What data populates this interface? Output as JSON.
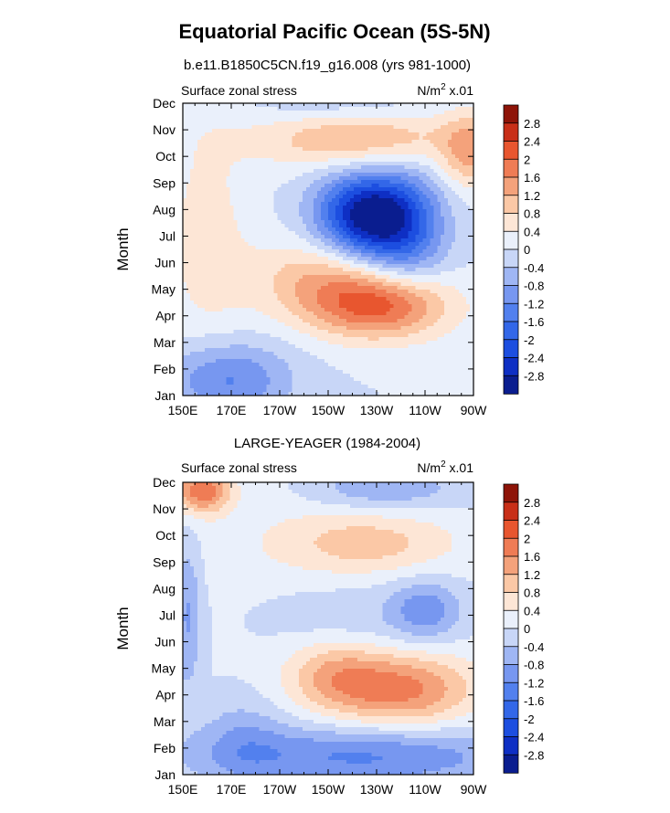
{
  "figure": {
    "title": "Equatorial Pacific Ocean (5S-5N)",
    "colorscale_name": "BlueWhiteOrangeRed",
    "colorbar_levels": [
      "-2.8",
      "-2.4",
      "-2",
      "-1.6",
      "-1.2",
      "-0.8",
      "-0.4",
      "0",
      "0.4",
      "0.8",
      "1.2",
      "1.6",
      "2",
      "2.4",
      "2.8"
    ],
    "colorbar_colors": [
      "#0a1d8f",
      "#0e2fc4",
      "#1c4ee0",
      "#3367e8",
      "#5280ee",
      "#7797f0",
      "#9fb6f4",
      "#c8d6f7",
      "#eaf0fb",
      "#fde6d6",
      "#fbc8a6",
      "#f4a27b",
      "#ef7c55",
      "#e8562f",
      "#c82f18",
      "#8e1408"
    ],
    "neutral_color": "#ffffff"
  },
  "chart_data": [
    {
      "type": "heatmap",
      "subtitle": "b.e11.B1850C5CN.f19_g16.008 (yrs 981-1000)",
      "left_label": "Surface zonal stress",
      "units_label": {
        "base": "N/m",
        "exp": "2",
        "suffix": " x.01"
      },
      "ylabel": "Month",
      "xlabel": "",
      "x_tick_labels": [
        "150E",
        "170E",
        "170W",
        "150W",
        "130W",
        "110W",
        "90W"
      ],
      "x_tick_lons": [
        150,
        170,
        190,
        210,
        230,
        250,
        270
      ],
      "xlim": [
        150,
        270
      ],
      "y_tick_labels": [
        "Jan",
        "Feb",
        "Mar",
        "Apr",
        "May",
        "Jun",
        "Jul",
        "Aug",
        "Sep",
        "Oct",
        "Nov",
        "Dec"
      ],
      "ylim": [
        1,
        12
      ],
      "value_scale": 0.01,
      "field_model": "simulated",
      "field_components": [
        {
          "kind": "gauss",
          "lon": 225,
          "month": 7.8,
          "sx": 14,
          "sy": 1.1,
          "amp": -2.9
        },
        {
          "kind": "gauss",
          "lon": 242,
          "month": 7.2,
          "sx": 12,
          "sy": 1.5,
          "amp": -1.5
        },
        {
          "kind": "gauss",
          "lon": 232,
          "month": 4.4,
          "sx": 20,
          "sy": 0.9,
          "amp": 2.1
        },
        {
          "kind": "gauss",
          "lon": 205,
          "month": 5.4,
          "sx": 20,
          "sy": 1.1,
          "amp": 1.0
        },
        {
          "kind": "gauss",
          "lon": 222,
          "month": 10.7,
          "sx": 30,
          "sy": 0.8,
          "amp": 1.3
        },
        {
          "kind": "gauss",
          "lon": 268,
          "month": 10.2,
          "sx": 8,
          "sy": 1.0,
          "amp": 1.2
        },
        {
          "kind": "gauss",
          "lon": 168,
          "month": 1.6,
          "sx": 18,
          "sy": 1.0,
          "amp": -1.3
        },
        {
          "kind": "gauss",
          "lon": 160,
          "month": 7.0,
          "sx": 12,
          "sy": 3.0,
          "amp": 0.6
        },
        {
          "kind": "gauss",
          "lon": 215,
          "month": 11.9,
          "sx": 25,
          "sy": 0.6,
          "amp": -0.5
        }
      ]
    },
    {
      "type": "heatmap",
      "subtitle": "LARGE-YEAGER (1984-2004)",
      "left_label": "Surface zonal stress",
      "units_label": {
        "base": "N/m",
        "exp": "2",
        "suffix": " x.01"
      },
      "ylabel": "Month",
      "xlabel": "",
      "x_tick_labels": [
        "150E",
        "170E",
        "170W",
        "150W",
        "130W",
        "110W",
        "90W"
      ],
      "x_tick_lons": [
        150,
        170,
        190,
        210,
        230,
        250,
        270
      ],
      "xlim": [
        150,
        270
      ],
      "y_tick_labels": [
        "Jan",
        "Feb",
        "Mar",
        "Apr",
        "May",
        "Jun",
        "Jul",
        "Aug",
        "Sep",
        "Oct",
        "Nov",
        "Dec"
      ],
      "ylim": [
        1,
        12
      ],
      "value_scale": 0.01,
      "field_model": "observed",
      "field_components": [
        {
          "kind": "gauss",
          "lon": 240,
          "month": 4.2,
          "sx": 22,
          "sy": 1.0,
          "amp": 1.7
        },
        {
          "kind": "gauss",
          "lon": 212,
          "month": 4.8,
          "sx": 14,
          "sy": 0.9,
          "amp": 0.9
        },
        {
          "kind": "gauss",
          "lon": 158,
          "month": 11.7,
          "sx": 8,
          "sy": 0.6,
          "amp": 1.9
        },
        {
          "kind": "gauss",
          "lon": 227,
          "month": 9.7,
          "sx": 25,
          "sy": 0.8,
          "amp": 0.8
        },
        {
          "kind": "gauss",
          "lon": 224,
          "month": 1.7,
          "sx": 45,
          "sy": 0.8,
          "amp": -1.3
        },
        {
          "kind": "gauss",
          "lon": 175,
          "month": 2.3,
          "sx": 12,
          "sy": 1.2,
          "amp": -0.6
        },
        {
          "kind": "gauss",
          "lon": 250,
          "month": 7.2,
          "sx": 10,
          "sy": 0.8,
          "amp": -1.0
        },
        {
          "kind": "gauss",
          "lon": 232,
          "month": 11.8,
          "sx": 22,
          "sy": 0.6,
          "amp": -0.9
        },
        {
          "kind": "gauss",
          "lon": 218,
          "month": 7.0,
          "sx": 30,
          "sy": 1.1,
          "amp": -0.5
        },
        {
          "kind": "gauss",
          "lon": 152,
          "month": 7.0,
          "sx": 4,
          "sy": 2.0,
          "amp": -0.9
        },
        {
          "kind": "gauss",
          "lon": 205,
          "month": 9.0,
          "sx": 40,
          "sy": 3.0,
          "amp": 0.3
        }
      ]
    }
  ]
}
